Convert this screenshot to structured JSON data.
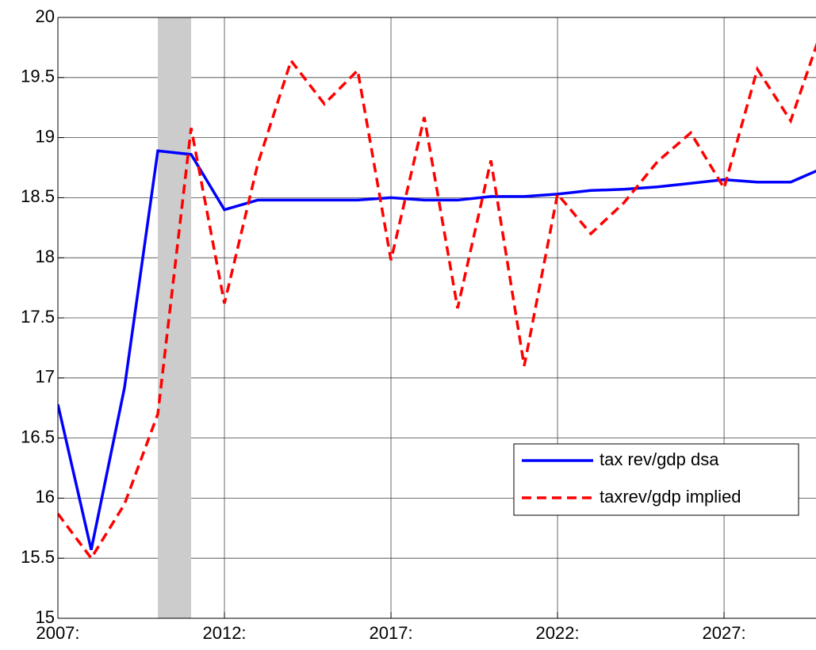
{
  "chart_data": {
    "type": "line",
    "x": [
      2007,
      2008,
      2009,
      2010,
      2011,
      2012,
      2013,
      2014,
      2015,
      2016,
      2017,
      2018,
      2019,
      2020,
      2021,
      2022,
      2023,
      2024,
      2025,
      2026,
      2027,
      2028,
      2029,
      2030
    ],
    "series": [
      {
        "name": "tax rev/gdp dsa",
        "color": "#0000ff",
        "dash": false,
        "values": [
          16.78,
          15.57,
          16.92,
          18.89,
          18.86,
          18.4,
          18.48,
          18.48,
          18.48,
          18.48,
          18.5,
          18.48,
          18.48,
          18.51,
          18.51,
          18.53,
          18.56,
          18.57,
          18.59,
          18.62,
          18.65,
          18.63,
          18.63,
          18.75
        ]
      },
      {
        "name": "taxrev/gdp implied",
        "color": "#ff0000",
        "dash": true,
        "values": [
          15.87,
          15.5,
          15.95,
          16.7,
          19.08,
          17.62,
          18.78,
          19.64,
          19.28,
          19.56,
          17.98,
          19.17,
          17.58,
          18.81,
          17.1,
          18.53,
          18.2,
          18.46,
          18.8,
          19.04,
          18.58,
          19.57,
          19.14,
          19.95
        ]
      }
    ],
    "shade": [
      2010,
      2011
    ],
    "xlim": [
      2007,
      2029.76
    ],
    "xticks": [
      {
        "value": 2007,
        "label": "2007:"
      },
      {
        "value": 2012,
        "label": "2012:"
      },
      {
        "value": 2017,
        "label": "2017:"
      },
      {
        "value": 2022,
        "label": "2022:"
      },
      {
        "value": 2027,
        "label": "2027:"
      }
    ],
    "ylim": [
      15,
      20
    ],
    "yticks": [
      15,
      15.5,
      16,
      16.5,
      17,
      17.5,
      18,
      18.5,
      19,
      19.5,
      20
    ],
    "grid": true,
    "legend": "lower right"
  }
}
